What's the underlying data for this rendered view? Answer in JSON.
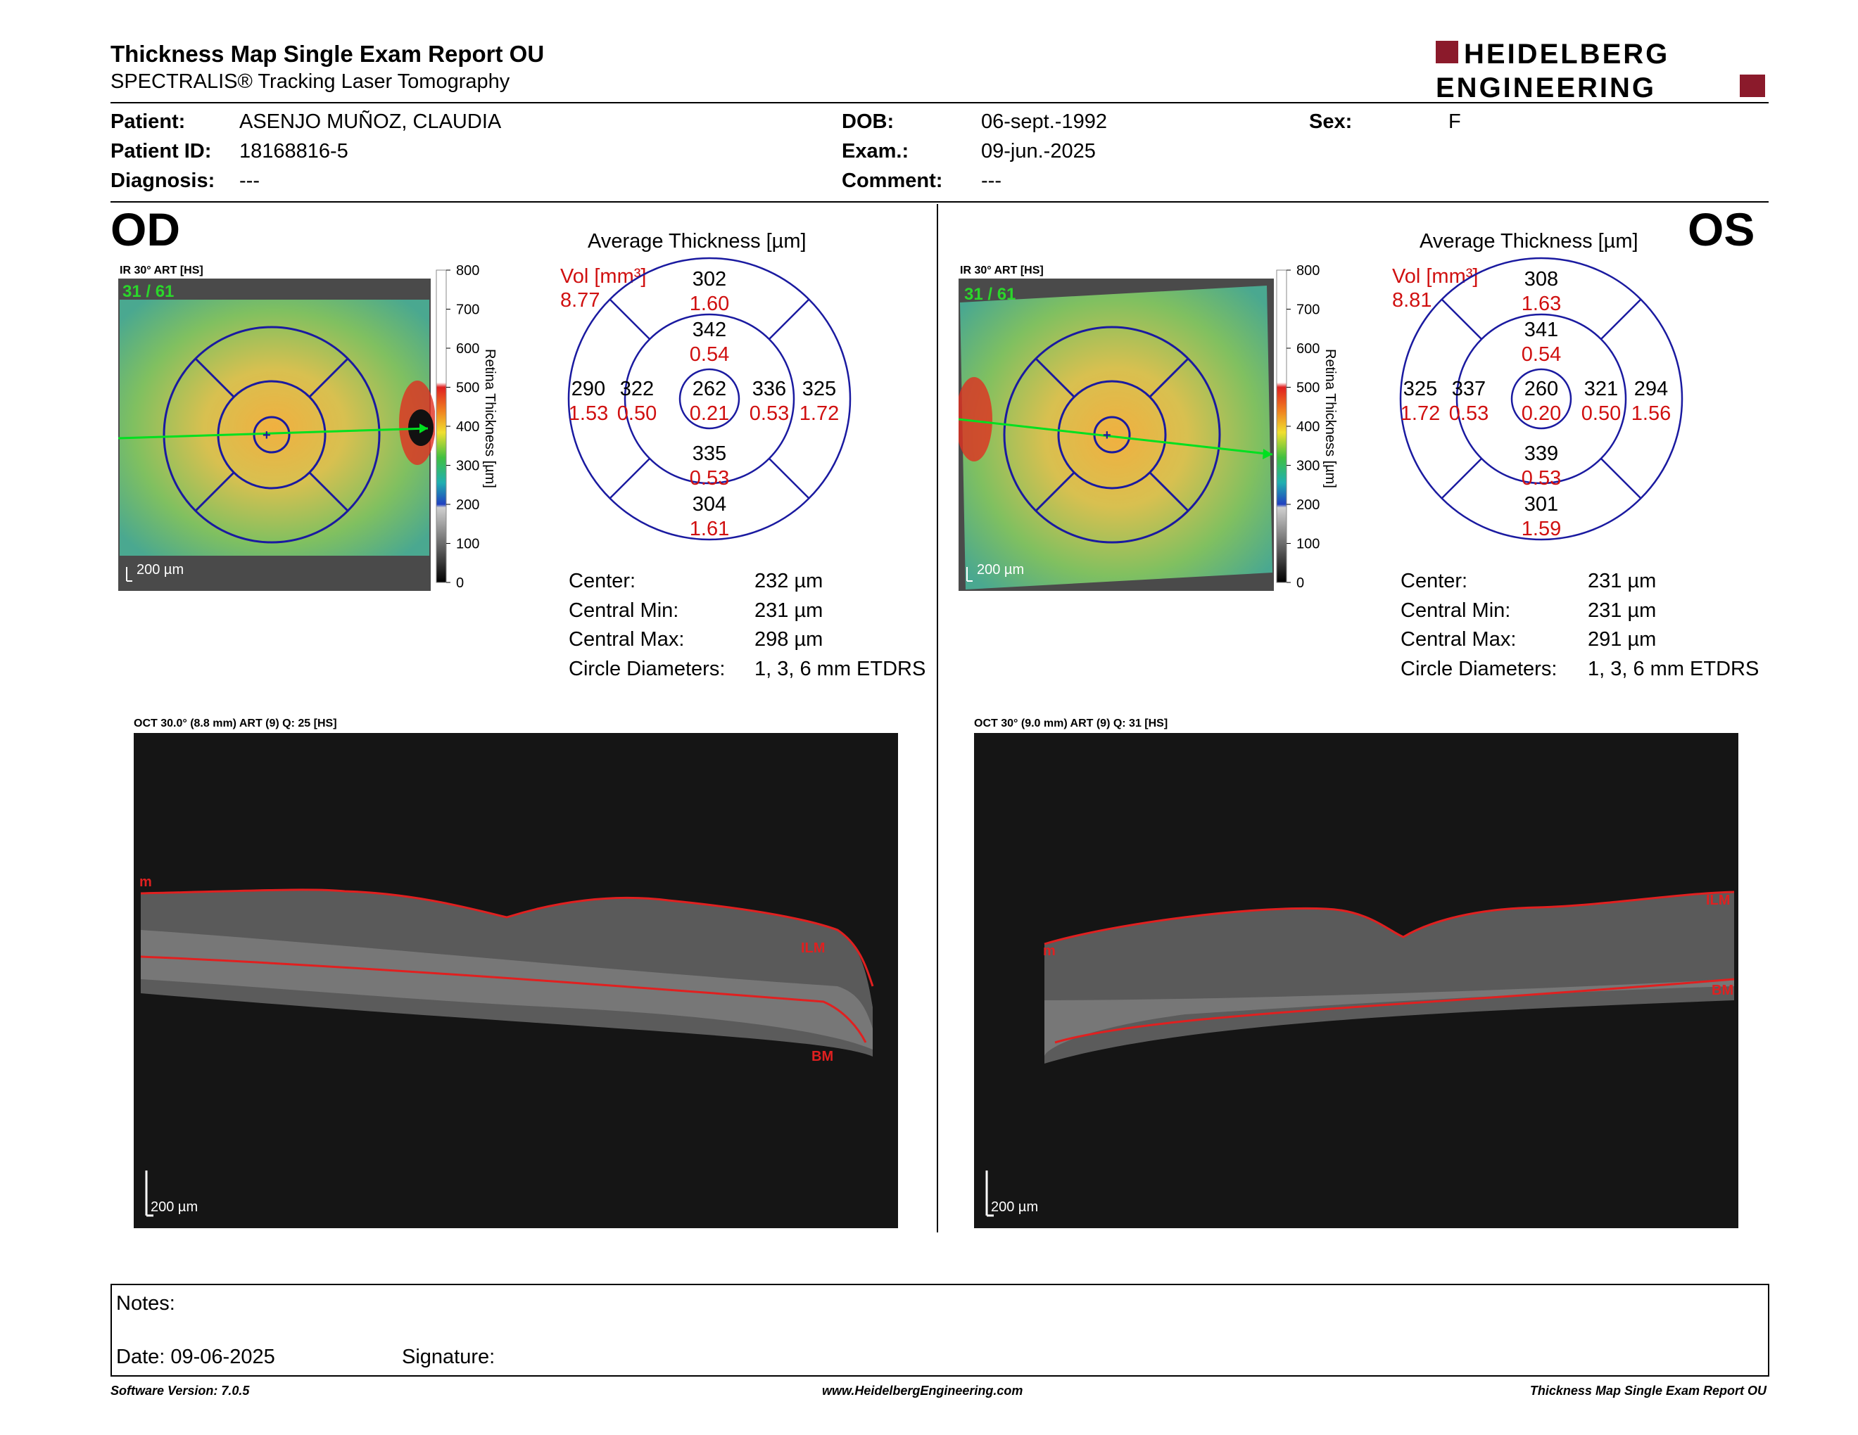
{
  "header": {
    "title": "Thickness Map Single Exam Report OU",
    "subtitle": "SPECTRALIS® Tracking Laser Tomography",
    "logo_line1": "HEIDELBERG",
    "logo_line2": "ENGINEERING",
    "brand_color": "#8b1a2b"
  },
  "patient": {
    "patient_label": "Patient:",
    "patient_value": "ASENJO MUÑOZ, CLAUDIA",
    "id_label": "Patient ID:",
    "id_value": "18168816-5",
    "diagnosis_label": "Diagnosis:",
    "diagnosis_value": "---",
    "dob_label": "DOB:",
    "dob_value": "06-sept.-1992",
    "exam_label": "Exam.:",
    "exam_value": "09-jun.-2025",
    "comment_label": "Comment:",
    "comment_value": "---",
    "sex_label": "Sex:",
    "sex_value": "F"
  },
  "od": {
    "eye": "OD",
    "ir_title": "IR 30° ART [HS]",
    "frame": "31 / 61",
    "scale_bar": "200 µm",
    "colorbar_ticks": [
      "800",
      "700",
      "600",
      "500",
      "400",
      "300",
      "200",
      "100",
      "0"
    ],
    "colorbar_label": "Retina Thickness [µm]",
    "avg_title": "Average Thickness [µm]",
    "vol_label": "Vol [mm³]",
    "vol_value": "8.77",
    "grid": {
      "center_t": "262",
      "center_v": "0.21",
      "inner_sup_t": "342",
      "inner_sup_v": "0.54",
      "inner_inf_t": "335",
      "inner_inf_v": "0.53",
      "inner_nas_t": "336",
      "inner_nas_v": "0.53",
      "inner_tem_t": "322",
      "inner_tem_v": "0.50",
      "outer_sup_t": "302",
      "outer_sup_v": "1.60",
      "outer_inf_t": "304",
      "outer_inf_v": "1.61",
      "outer_nas_t": "325",
      "outer_nas_v": "1.72",
      "outer_tem_t": "290",
      "outer_tem_v": "1.53"
    },
    "stats": {
      "center_label": "Center:",
      "center_value": "232 µm",
      "min_label": "Central Min:",
      "min_value": "231 µm",
      "max_label": "Central Max:",
      "max_value": "298 µm",
      "diam_label": "Circle Diameters:",
      "diam_value": "1, 3, 6 mm ETDRS"
    },
    "oct_title": "OCT 30.0° (8.8 mm) ART (9) Q: 25 [HS]",
    "oct_scale": "200 µm",
    "oct_labels": {
      "m": "m",
      "ilm": "ILM",
      "bm": "BM"
    }
  },
  "os": {
    "eye": "OS",
    "ir_title": "IR 30° ART [HS]",
    "frame": "31 / 61",
    "scale_bar": "200 µm",
    "colorbar_ticks": [
      "800",
      "700",
      "600",
      "500",
      "400",
      "300",
      "200",
      "100",
      "0"
    ],
    "colorbar_label": "Retina Thickness [µm]",
    "avg_title": "Average Thickness [µm]",
    "vol_label": "Vol [mm³]",
    "vol_value": "8.81",
    "grid": {
      "center_t": "260",
      "center_v": "0.20",
      "inner_sup_t": "341",
      "inner_sup_v": "0.54",
      "inner_inf_t": "339",
      "inner_inf_v": "0.53",
      "inner_nas_t": "337",
      "inner_nas_v": "0.53",
      "inner_tem_t": "321",
      "inner_tem_v": "0.50",
      "outer_sup_t": "308",
      "outer_sup_v": "1.63",
      "outer_inf_t": "301",
      "outer_inf_v": "1.59",
      "outer_nas_t": "325",
      "outer_nas_v": "1.72",
      "outer_tem_t": "294",
      "outer_tem_v": "1.56"
    },
    "stats": {
      "center_label": "Center:",
      "center_value": "231 µm",
      "min_label": "Central Min:",
      "min_value": "231 µm",
      "max_label": "Central Max:",
      "max_value": "291 µm",
      "diam_label": "Circle Diameters:",
      "diam_value": "1, 3, 6 mm ETDRS"
    },
    "oct_title": "OCT 30° (9.0 mm) ART (9) Q: 31 [HS]",
    "oct_scale": "200 µm",
    "oct_labels": {
      "m": "m",
      "ilm": "ILM",
      "bm": "BM"
    }
  },
  "notes": {
    "notes_label": "Notes:",
    "date_label": "Date: 09-06-2025",
    "signature_label": "Signature:"
  },
  "footer": {
    "software": "Software Version: 7.0.5",
    "website": "www.HeidelbergEngineering.com",
    "report": "Thickness Map Single Exam Report OU"
  }
}
